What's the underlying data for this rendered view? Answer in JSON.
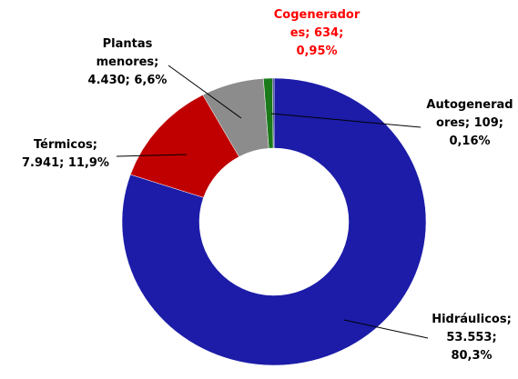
{
  "chart_data": {
    "type": "donut",
    "categories": [
      "Hidráulicos",
      "Térmicos",
      "Plantas menores",
      "Cogeneradores",
      "Autogeneradores"
    ],
    "values": [
      53553,
      7941,
      4430,
      634,
      109
    ],
    "colors": [
      "#1c1ca8",
      "#c00000",
      "#8c8c8c",
      "#1a7a1a",
      "#1f2d6b"
    ],
    "value_labels": [
      [
        "Hidráulicos;",
        "53.553;",
        "80,3%"
      ],
      [
        "Térmicos;",
        "7.941; 11,9%"
      ],
      [
        "Plantas",
        "menores;",
        "4.430; 6,6%"
      ],
      [
        "Cogenerador",
        "es; 634;",
        "0,95%"
      ],
      [
        "Autogenerad",
        "ores; 109;",
        "0,16%"
      ]
    ],
    "label_colors": [
      "#000000",
      "#000000",
      "#000000",
      "#ff0000",
      "#000000"
    ]
  }
}
